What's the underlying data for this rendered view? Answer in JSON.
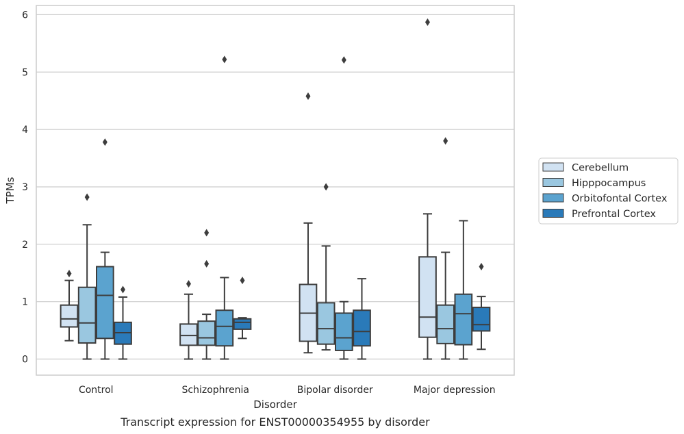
{
  "caption": "Transcript expression for ENST00000354955 by disorder",
  "chart_data": {
    "type": "boxplot",
    "title": "",
    "xlabel": "Disorder",
    "ylabel": "TPMs",
    "ylim": [
      -0.28,
      6.16
    ],
    "yticks": [
      0,
      1,
      2,
      3,
      4,
      5,
      6
    ],
    "grid": "horizontal",
    "legend_position": "right",
    "categories": [
      "Control",
      "Schizophrenia",
      "Bipolar disorder",
      "Major depression"
    ],
    "series": [
      {
        "name": "Cerebellum",
        "color": "#d1e2f2",
        "boxes": [
          {
            "whislo": 0.32,
            "q1": 0.56,
            "med": 0.7,
            "q3": 0.94,
            "whishi": 1.37,
            "fliers": [
              1.49
            ]
          },
          {
            "whislo": 0.0,
            "q1": 0.24,
            "med": 0.41,
            "q3": 0.61,
            "whishi": 1.13,
            "fliers": [
              1.31
            ]
          },
          {
            "whislo": 0.11,
            "q1": 0.31,
            "med": 0.8,
            "q3": 1.3,
            "whishi": 2.37,
            "fliers": [
              4.58
            ]
          },
          {
            "whislo": 0.0,
            "q1": 0.38,
            "med": 0.73,
            "q3": 1.78,
            "whishi": 2.53,
            "fliers": [
              5.87
            ]
          }
        ]
      },
      {
        "name": "Hipppocampus",
        "color": "#9ac7e0",
        "boxes": [
          {
            "whislo": 0.0,
            "q1": 0.28,
            "med": 0.63,
            "q3": 1.25,
            "whishi": 2.34,
            "fliers": [
              2.82
            ]
          },
          {
            "whislo": 0.0,
            "q1": 0.24,
            "med": 0.37,
            "q3": 0.66,
            "whishi": 0.78,
            "fliers": [
              1.66,
              2.2
            ]
          },
          {
            "whislo": 0.16,
            "q1": 0.26,
            "med": 0.53,
            "q3": 0.98,
            "whishi": 1.97,
            "fliers": [
              3.0
            ]
          },
          {
            "whislo": 0.0,
            "q1": 0.27,
            "med": 0.53,
            "q3": 0.94,
            "whishi": 1.86,
            "fliers": [
              3.8
            ]
          }
        ]
      },
      {
        "name": "Orbitofontal Cortex",
        "color": "#5ba3cf",
        "boxes": [
          {
            "whislo": 0.0,
            "q1": 0.36,
            "med": 1.11,
            "q3": 1.61,
            "whishi": 1.86,
            "fliers": [
              3.78
            ]
          },
          {
            "whislo": 0.0,
            "q1": 0.23,
            "med": 0.57,
            "q3": 0.85,
            "whishi": 1.42,
            "fliers": [
              5.22
            ]
          },
          {
            "whislo": 0.0,
            "q1": 0.15,
            "med": 0.37,
            "q3": 0.8,
            "whishi": 1.0,
            "fliers": [
              5.21
            ]
          },
          {
            "whislo": 0.0,
            "q1": 0.25,
            "med": 0.79,
            "q3": 1.13,
            "whishi": 2.41,
            "fliers": []
          }
        ]
      },
      {
        "name": "Prefrontal Cortex",
        "color": "#2a7ab9",
        "boxes": [
          {
            "whislo": 0.0,
            "q1": 0.26,
            "med": 0.46,
            "q3": 0.64,
            "whishi": 1.08,
            "fliers": [
              1.21
            ]
          },
          {
            "whislo": 0.36,
            "q1": 0.52,
            "med": 0.64,
            "q3": 0.7,
            "whishi": 0.72,
            "fliers": [
              1.37
            ]
          },
          {
            "whislo": 0.0,
            "q1": 0.23,
            "med": 0.48,
            "q3": 0.85,
            "whishi": 1.4,
            "fliers": []
          },
          {
            "whislo": 0.17,
            "q1": 0.49,
            "med": 0.6,
            "q3": 0.9,
            "whishi": 1.09,
            "fliers": [
              1.61
            ]
          }
        ]
      }
    ]
  }
}
